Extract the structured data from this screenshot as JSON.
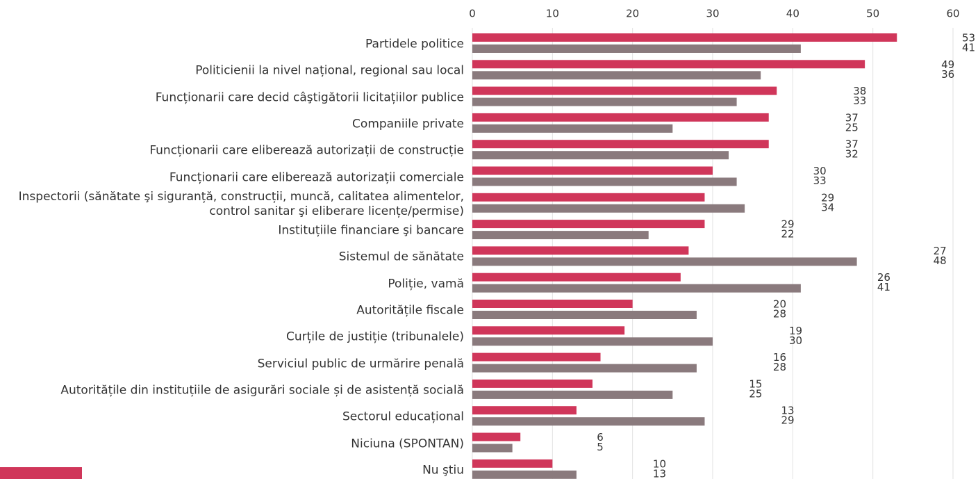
{
  "chart_data": {
    "type": "barh",
    "categories": [
      "Partidele politice",
      "Politicienii la nivel național, regional sau local",
      "Funcționarii care decid câştigătorii licitațiilor publice",
      "Companiile private",
      "Funcționarii care eliberează autorizații de construcție",
      "Funcționarii care eliberează autorizații comerciale",
      "Inspectorii (sănătate şi siguranță, construcții, muncă, calitatea alimentelor,\ncontrol sanitar şi eliberare licențe/permise)",
      "Instituțiile financiare şi bancare",
      "Sistemul de sănătate",
      "Poliție, vamă",
      "Autoritățile fiscale",
      "Curțile de justiție (tribunalele)",
      "Serviciul public de urmărire penală",
      "Autoritățile din instituțiile de asigurări sociale și de asistență socială",
      "Sectorul educațional",
      "Niciuna (SPONTAN)",
      "Nu ştiu"
    ],
    "series": [
      {
        "color": "#d0365a",
        "values": [
          53,
          49,
          38,
          37,
          37,
          30,
          29,
          29,
          27,
          26,
          20,
          19,
          16,
          15,
          13,
          6,
          10
        ]
      },
      {
        "color": "#8a7a7d",
        "values": [
          41,
          36,
          33,
          25,
          32,
          33,
          34,
          22,
          48,
          41,
          28,
          30,
          28,
          25,
          29,
          5,
          13
        ]
      }
    ],
    "xlim": [
      0,
      60
    ],
    "xticks": [
      0,
      10,
      20,
      30,
      40,
      50,
      60
    ],
    "grid": true
  }
}
